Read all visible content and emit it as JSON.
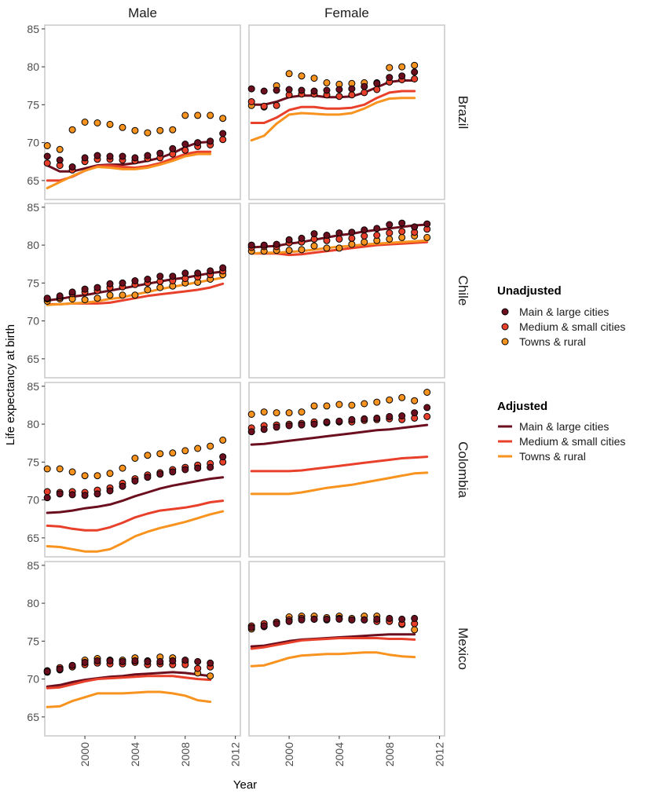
{
  "chart_data": {
    "type": "line",
    "xlabel": "Year",
    "ylabel": "Life expectancy at birth",
    "xlim": [
      1996.8,
      2012.4
    ],
    "ylim": [
      62.5,
      85.5
    ],
    "x_ticks": [
      2000,
      2004,
      2008,
      2012
    ],
    "y_ticks": [
      65,
      70,
      75,
      80,
      85
    ],
    "columns": [
      "Male",
      "Female"
    ],
    "rows": [
      "Brazil",
      "Chile",
      "Colombia",
      "Mexico"
    ],
    "grid": false,
    "legend_placement": "right",
    "legend": {
      "unadjusted_title": "Unadjusted",
      "adjusted_title": "Adjusted"
    },
    "series": [
      {
        "name": "Main & large cities",
        "color": "#6b0f1f"
      },
      {
        "name": "Medium & small cities",
        "color": "#e8402a"
      },
      {
        "name": "Towns & rural",
        "color": "#f7931e"
      }
    ],
    "panels": [
      {
        "row": "Brazil",
        "col": "Male",
        "x_start": 1997,
        "points": [
          [
            68.2,
            67.7,
            66.8,
            68.0,
            68.3,
            68.2,
            68.2,
            68.0,
            68.3,
            68.6,
            69.2,
            69.8,
            70.0,
            70.2,
            71.2
          ],
          [
            67.3,
            67.0,
            66.4,
            67.5,
            67.8,
            67.8,
            67.7,
            67.6,
            67.9,
            68.0,
            68.5,
            69.0,
            69.5,
            69.7,
            70.4
          ],
          [
            69.6,
            69.1,
            71.7,
            72.7,
            72.6,
            72.4,
            72.0,
            71.6,
            71.3,
            71.6,
            71.7,
            73.6,
            73.6,
            73.6,
            73.2
          ]
        ],
        "lines": [
          [
            67.0,
            66.2,
            66.2,
            66.6,
            67.0,
            67.1,
            67.1,
            67.3,
            67.6,
            68.0,
            68.6,
            69.4,
            70.0,
            70.1
          ],
          [
            65.0,
            65.0,
            65.5,
            66.3,
            66.9,
            67.0,
            66.8,
            66.7,
            66.9,
            67.3,
            67.9,
            68.5,
            68.8,
            68.8
          ],
          [
            64.0,
            64.8,
            65.6,
            66.3,
            66.8,
            66.7,
            66.5,
            66.5,
            66.7,
            67.1,
            67.6,
            68.2,
            68.5,
            68.5
          ]
        ]
      },
      {
        "row": "Brazil",
        "col": "Female",
        "x_start": 1997,
        "points": [
          [
            77.1,
            76.8,
            76.9,
            77.0,
            76.9,
            76.8,
            76.9,
            77.0,
            77.1,
            77.4,
            77.8,
            78.6,
            78.8,
            79.3
          ],
          [
            75.4,
            74.8,
            74.9,
            76.3,
            76.4,
            76.4,
            76.3,
            76.1,
            76.3,
            76.6,
            77.0,
            78.0,
            78.3,
            78.4
          ],
          [
            74.9,
            74.7,
            77.5,
            79.1,
            78.8,
            78.5,
            77.9,
            77.7,
            77.8,
            77.9,
            77.9,
            79.9,
            80.0,
            80.2
          ]
        ],
        "lines": [
          [
            75.0,
            75.0,
            75.4,
            76.0,
            76.2,
            76.2,
            76.0,
            76.0,
            76.1,
            76.6,
            77.3,
            78.0,
            78.2,
            78.2
          ],
          [
            72.6,
            72.6,
            73.3,
            74.3,
            74.7,
            74.7,
            74.5,
            74.5,
            74.6,
            75.0,
            75.9,
            76.6,
            76.8,
            76.8
          ],
          [
            70.3,
            70.9,
            72.5,
            73.7,
            73.9,
            73.8,
            73.7,
            73.7,
            73.9,
            74.5,
            75.3,
            75.8,
            75.9,
            75.9
          ]
        ]
      },
      {
        "row": "Chile",
        "col": "Male",
        "x_start": 1997,
        "points": [
          [
            73.0,
            73.3,
            73.8,
            74.2,
            74.4,
            74.9,
            75.0,
            75.3,
            75.5,
            75.9,
            75.9,
            76.3,
            76.3,
            76.6,
            77.0
          ],
          [
            72.9,
            73.1,
            73.6,
            73.8,
            74.0,
            74.4,
            74.5,
            74.8,
            75.0,
            75.2,
            75.3,
            75.6,
            75.8,
            76.1,
            76.6
          ],
          [
            72.6,
            72.9,
            72.9,
            72.8,
            73.0,
            73.4,
            73.4,
            73.4,
            74.1,
            74.4,
            74.6,
            75.0,
            75.1,
            75.5,
            76.1
          ]
        ],
        "lines": [
          [
            72.7,
            72.9,
            73.2,
            73.4,
            73.7,
            74.0,
            74.3,
            74.6,
            74.9,
            75.2,
            75.5,
            75.7,
            76.0,
            76.3,
            76.5
          ],
          [
            72.2,
            72.2,
            72.3,
            72.3,
            72.3,
            72.4,
            72.7,
            73.0,
            73.3,
            73.5,
            73.7,
            73.9,
            74.1,
            74.4,
            74.9
          ],
          [
            72.1,
            72.2,
            72.3,
            72.4,
            72.6,
            72.9,
            73.1,
            73.5,
            73.8,
            74.2,
            74.5,
            74.8,
            75.1,
            75.4,
            75.7
          ]
        ]
      },
      {
        "row": "Chile",
        "col": "Female",
        "x_start": 1997,
        "points": [
          [
            80.0,
            80.0,
            80.1,
            80.7,
            80.9,
            81.5,
            81.3,
            81.6,
            81.7,
            82.0,
            82.2,
            82.7,
            82.9,
            82.4,
            82.8
          ],
          [
            79.7,
            79.8,
            79.8,
            80.3,
            80.4,
            80.8,
            80.6,
            80.8,
            80.9,
            81.2,
            81.3,
            81.6,
            81.8,
            81.7,
            82.1
          ],
          [
            79.2,
            79.2,
            79.3,
            79.3,
            79.4,
            79.9,
            79.6,
            79.6,
            80.1,
            80.4,
            80.6,
            80.8,
            81.0,
            81.2,
            81.0
          ]
        ],
        "lines": [
          [
            79.7,
            79.8,
            79.9,
            80.2,
            80.4,
            80.7,
            81.0,
            81.3,
            81.5,
            81.8,
            82.0,
            82.2,
            82.4,
            82.6,
            82.7
          ],
          [
            78.9,
            78.9,
            78.9,
            78.7,
            78.8,
            79.0,
            79.2,
            79.4,
            79.6,
            79.8,
            80.0,
            80.1,
            80.2,
            80.3,
            80.4
          ],
          [
            78.9,
            79.0,
            79.0,
            79.1,
            79.2,
            79.4,
            79.6,
            79.8,
            79.9,
            80.1,
            80.2,
            80.3,
            80.4,
            80.5,
            80.6
          ]
        ]
      },
      {
        "row": "Colombia",
        "col": "Male",
        "x_start": 1997,
        "points": [
          [
            70.3,
            70.8,
            70.7,
            70.6,
            70.8,
            71.2,
            71.8,
            72.5,
            73.0,
            73.4,
            73.7,
            74.0,
            74.2,
            74.3,
            75.7
          ],
          [
            71.1,
            71.0,
            71.1,
            71.0,
            71.3,
            71.6,
            72.2,
            72.8,
            73.3,
            73.6,
            74.0,
            74.3,
            74.6,
            74.8,
            75.0
          ],
          [
            74.1,
            74.1,
            73.7,
            73.2,
            73.2,
            73.5,
            74.2,
            75.5,
            75.9,
            76.1,
            76.2,
            76.5,
            76.8,
            77.1,
            77.9
          ]
        ],
        "lines": [
          [
            68.3,
            68.4,
            68.6,
            68.9,
            69.1,
            69.4,
            69.9,
            70.5,
            71.0,
            71.5,
            71.9,
            72.2,
            72.5,
            72.8,
            73.0
          ],
          [
            66.6,
            66.5,
            66.2,
            66.0,
            66.0,
            66.4,
            67.0,
            67.7,
            68.2,
            68.6,
            68.8,
            69.0,
            69.3,
            69.7,
            69.9
          ],
          [
            63.9,
            63.8,
            63.5,
            63.2,
            63.2,
            63.5,
            64.3,
            65.2,
            65.8,
            66.3,
            66.7,
            67.1,
            67.6,
            68.1,
            68.5
          ]
        ]
      },
      {
        "row": "Colombia",
        "col": "Female",
        "x_start": 1997,
        "points": [
          [
            79.0,
            79.3,
            79.6,
            79.8,
            79.9,
            80.0,
            80.3,
            80.4,
            80.6,
            80.7,
            80.8,
            81.0,
            81.1,
            81.5,
            82.2
          ],
          [
            79.5,
            79.8,
            79.9,
            80.0,
            80.1,
            80.3,
            80.2,
            80.3,
            80.3,
            80.5,
            80.6,
            80.7,
            80.6,
            80.8,
            81.0
          ],
          [
            81.3,
            81.6,
            81.5,
            81.5,
            81.6,
            82.4,
            82.4,
            82.6,
            82.5,
            82.7,
            82.9,
            83.2,
            83.5,
            83.1,
            84.2
          ]
        ],
        "lines": [
          [
            77.3,
            77.4,
            77.6,
            77.8,
            78.0,
            78.2,
            78.4,
            78.6,
            78.8,
            79.0,
            79.2,
            79.3,
            79.5,
            79.7,
            79.9
          ],
          [
            73.8,
            73.8,
            73.8,
            73.8,
            73.9,
            74.1,
            74.3,
            74.5,
            74.7,
            74.9,
            75.1,
            75.3,
            75.5,
            75.6,
            75.7
          ],
          [
            70.8,
            70.8,
            70.8,
            70.8,
            71.0,
            71.3,
            71.6,
            71.8,
            72.0,
            72.3,
            72.6,
            72.9,
            73.2,
            73.5,
            73.6
          ]
        ]
      },
      {
        "row": "Mexico",
        "col": "Male",
        "x_start": 1997,
        "points": [
          [
            71.0,
            71.3,
            71.8,
            72.2,
            72.4,
            72.4,
            72.3,
            72.4,
            72.3,
            72.3,
            72.4,
            72.5,
            72.3,
            72.1
          ],
          [
            71.1,
            71.5,
            71.6,
            71.9,
            72.1,
            72.0,
            72.0,
            72.2,
            71.9,
            72.0,
            71.9,
            71.9,
            71.4,
            71.6
          ],
          [
            70.9,
            71.2,
            71.7,
            72.5,
            72.7,
            72.5,
            72.5,
            72.8,
            72.4,
            72.9,
            72.8,
            72.3,
            70.8,
            70.4
          ]
        ],
        "lines": [
          [
            69.0,
            69.2,
            69.6,
            69.9,
            70.1,
            70.3,
            70.4,
            70.6,
            70.7,
            70.8,
            70.9,
            70.8,
            70.6,
            70.4
          ],
          [
            68.8,
            68.9,
            69.3,
            69.7,
            70.0,
            70.1,
            70.2,
            70.3,
            70.4,
            70.4,
            70.4,
            70.2,
            70.0,
            69.9
          ],
          [
            66.3,
            66.4,
            67.1,
            67.6,
            68.1,
            68.1,
            68.1,
            68.2,
            68.3,
            68.3,
            68.1,
            67.8,
            67.2,
            67.0
          ]
        ]
      },
      {
        "row": "Mexico",
        "col": "Female",
        "x_start": 1997,
        "points": [
          [
            76.8,
            77.0,
            77.3,
            77.6,
            77.8,
            77.9,
            77.9,
            77.9,
            77.8,
            77.8,
            77.9,
            78.0,
            77.9,
            78.0
          ],
          [
            77.0,
            77.3,
            77.5,
            77.8,
            78.0,
            77.9,
            77.8,
            78.0,
            77.8,
            77.8,
            77.6,
            77.6,
            77.3,
            77.3
          ],
          [
            76.6,
            76.9,
            77.5,
            78.2,
            78.3,
            78.3,
            78.1,
            78.3,
            78.0,
            78.3,
            78.3,
            77.8,
            77.2,
            76.5
          ]
        ],
        "lines": [
          [
            74.3,
            74.4,
            74.7,
            75.0,
            75.2,
            75.3,
            75.4,
            75.5,
            75.6,
            75.7,
            75.8,
            75.9,
            75.9,
            75.9
          ],
          [
            74.0,
            74.2,
            74.5,
            74.8,
            75.1,
            75.2,
            75.3,
            75.4,
            75.4,
            75.4,
            75.4,
            75.3,
            75.3,
            75.2
          ],
          [
            71.7,
            71.8,
            72.3,
            72.8,
            73.1,
            73.2,
            73.3,
            73.3,
            73.4,
            73.5,
            73.5,
            73.2,
            73.0,
            72.9
          ]
        ]
      }
    ]
  }
}
